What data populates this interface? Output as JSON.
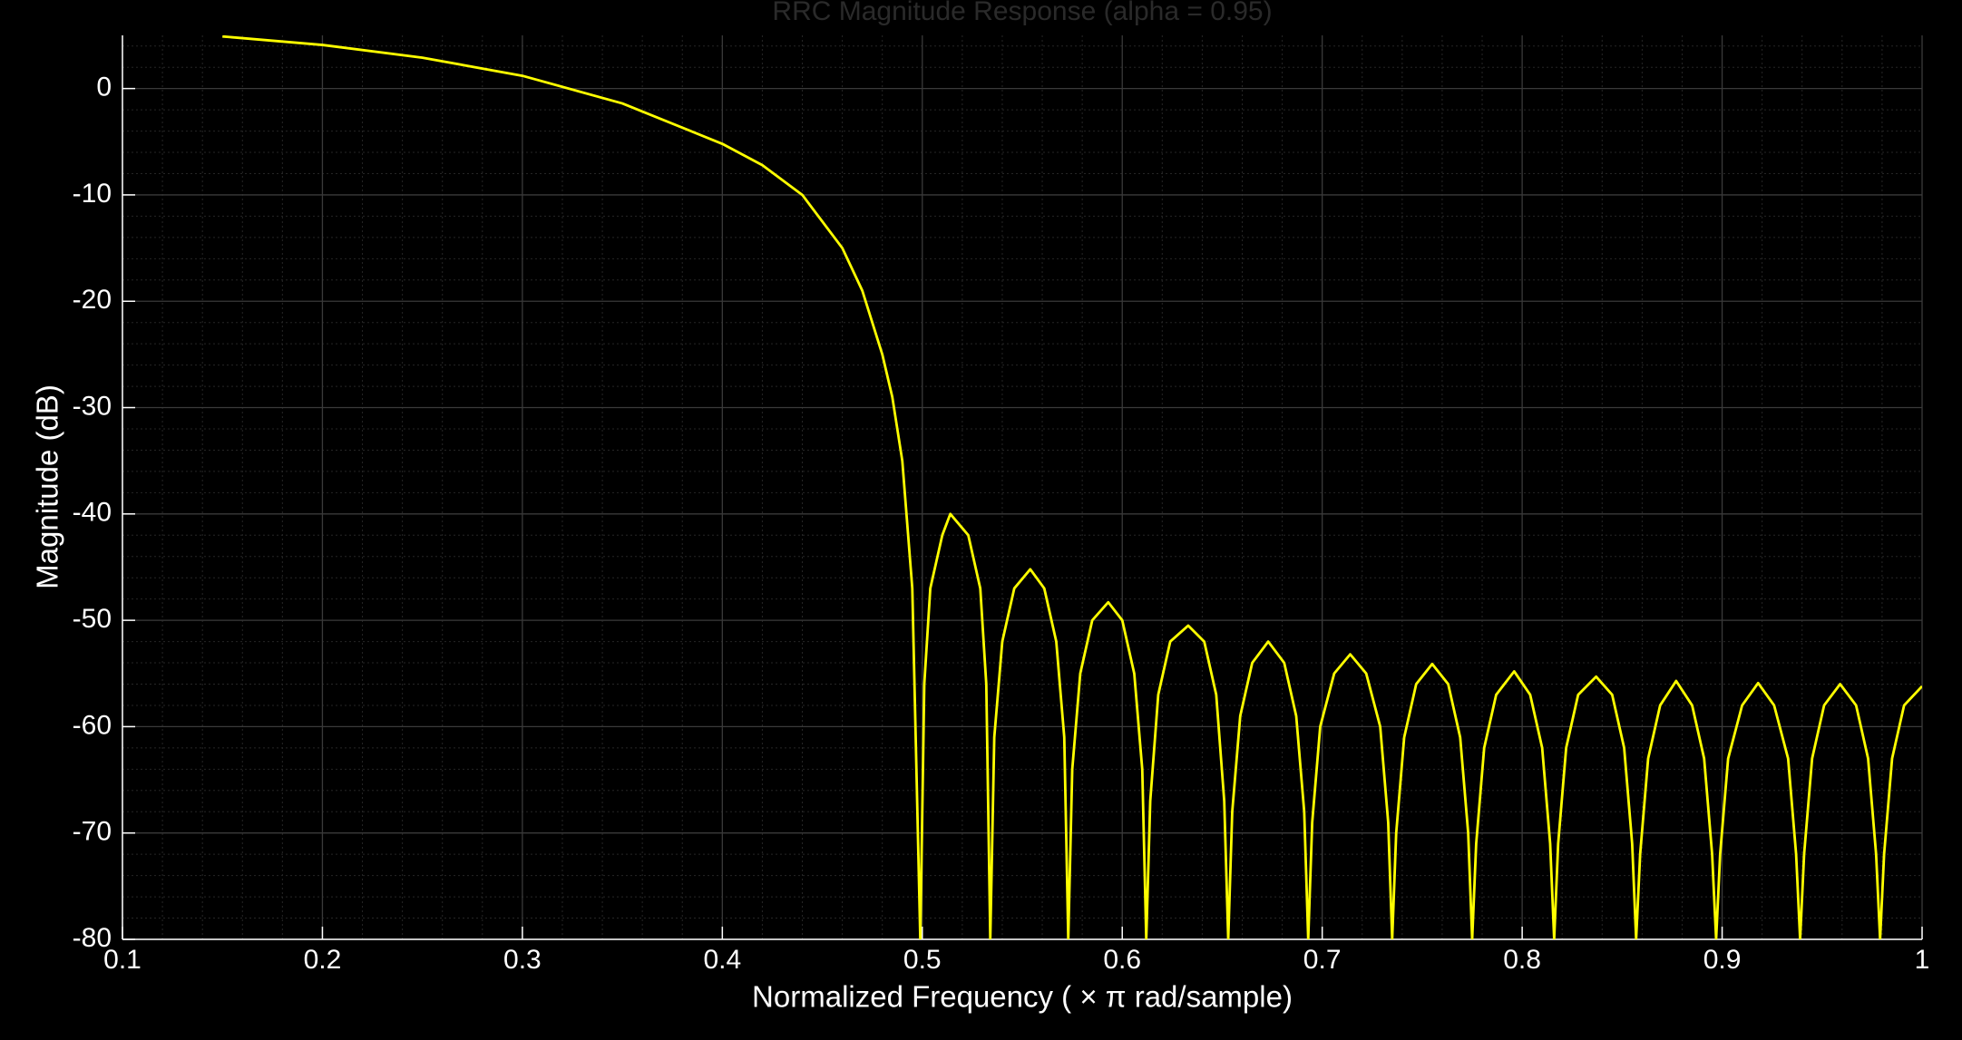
{
  "chart_data": {
    "type": "line",
    "title": "RRC Magnitude Response (alpha = 0.95)",
    "xlabel": "Normalized  Frequency  ( × π  rad/sample)",
    "ylabel": "Magnitude (dB)",
    "x": [
      0.15,
      0.2,
      0.25,
      0.3,
      0.35,
      0.4,
      0.42,
      0.44,
      0.46,
      0.47,
      0.48,
      0.485,
      0.49,
      0.495,
      0.499,
      0.501,
      0.504,
      0.51,
      0.514,
      0.523,
      0.529,
      0.532,
      0.534,
      0.536,
      0.54,
      0.546,
      0.554,
      0.561,
      0.567,
      0.571,
      0.573,
      0.575,
      0.579,
      0.585,
      0.593,
      0.6,
      0.606,
      0.61,
      0.612,
      0.614,
      0.618,
      0.624,
      0.633,
      0.641,
      0.647,
      0.651,
      0.653,
      0.655,
      0.659,
      0.665,
      0.673,
      0.681,
      0.687,
      0.691,
      0.693,
      0.695,
      0.699,
      0.706,
      0.714,
      0.722,
      0.729,
      0.733,
      0.735,
      0.737,
      0.741,
      0.747,
      0.755,
      0.763,
      0.769,
      0.773,
      0.775,
      0.777,
      0.781,
      0.787,
      0.796,
      0.804,
      0.81,
      0.814,
      0.816,
      0.818,
      0.822,
      0.828,
      0.837,
      0.845,
      0.851,
      0.855,
      0.857,
      0.859,
      0.863,
      0.869,
      0.877,
      0.885,
      0.891,
      0.895,
      0.897,
      0.899,
      0.903,
      0.91,
      0.918,
      0.926,
      0.933,
      0.937,
      0.939,
      0.941,
      0.945,
      0.951,
      0.959,
      0.967,
      0.973,
      0.977,
      0.979,
      0.981,
      0.985,
      0.991,
      1.0
    ],
    "series": [
      {
        "name": "Magnitude",
        "color": "#ffff00",
        "values": [
          4.9,
          4.1,
          2.9,
          1.2,
          -1.4,
          -5.2,
          -7.2,
          -10,
          -15,
          -19,
          -25,
          -29,
          -35,
          -47,
          -80,
          -56,
          -47,
          -42,
          -40,
          -42,
          -47,
          -56,
          -80,
          -61,
          -52,
          -47,
          -45.2,
          -47,
          -52,
          -61,
          -80,
          -64,
          -55,
          -50,
          -48.3,
          -50,
          -55,
          -64,
          -80,
          -67,
          -57,
          -52,
          -50.5,
          -52,
          -57,
          -67,
          -80,
          -68,
          -59,
          -54,
          -52,
          -54,
          -59,
          -68,
          -80,
          -69,
          -60,
          -55,
          -53.2,
          -55,
          -60,
          -69,
          -80,
          -70,
          -61,
          -56,
          -54.1,
          -56,
          -61,
          -70,
          -80,
          -71,
          -62,
          -57,
          -54.8,
          -57,
          -62,
          -71,
          -80,
          -71,
          -62,
          -57,
          -55.3,
          -57,
          -62,
          -71,
          -80,
          -72,
          -63,
          -58,
          -55.7,
          -58,
          -63,
          -72,
          -80,
          -72,
          -63,
          -58,
          -55.9,
          -58,
          -63,
          -72,
          -80,
          -72,
          -63,
          -58,
          -56,
          -58,
          -63,
          -72,
          -80,
          -72,
          -63,
          -58,
          -56.2
        ]
      }
    ],
    "xlim": [
      0.1,
      1
    ],
    "ylim": [
      -80,
      5
    ],
    "xticks": [
      0.1,
      0.2,
      0.3,
      0.4,
      0.5,
      0.6,
      0.7,
      0.8,
      0.9,
      1
    ],
    "yticks": [
      -80,
      -70,
      -60,
      -50,
      -40,
      -30,
      -20,
      -10,
      0
    ],
    "grid": true,
    "minor_grid": true
  }
}
